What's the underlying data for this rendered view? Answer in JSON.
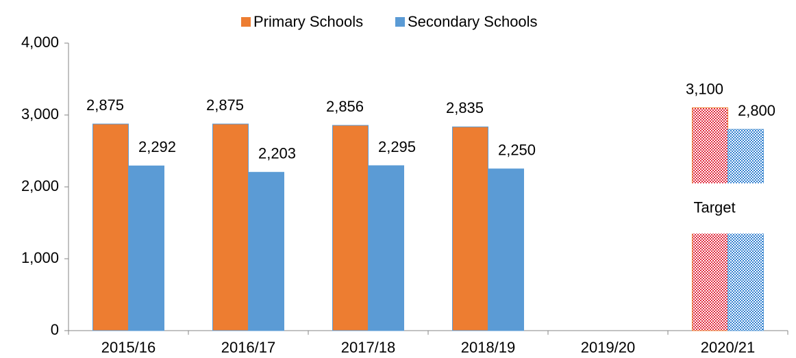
{
  "chart_data": {
    "type": "bar",
    "categories": [
      "2015/16",
      "2016/17",
      "2017/18",
      "2018/19",
      "2019/20",
      "2020/21"
    ],
    "series": [
      {
        "name": "Primary Schools",
        "color": "#ed7d31",
        "pattern_color": "#e0283c",
        "values": [
          2875,
          2875,
          2856,
          2835,
          null,
          3100
        ],
        "value_labels": [
          "2,875",
          "2,875",
          "2,856",
          "2,835",
          null,
          "3,100"
        ]
      },
      {
        "name": "Secondary Schools",
        "color": "#5b9bd5",
        "pattern_color": "#2f7fd0",
        "values": [
          2292,
          2203,
          2295,
          2250,
          null,
          2800
        ],
        "value_labels": [
          "2,292",
          "2,203",
          "2,295",
          "2,250",
          null,
          "2,800"
        ]
      }
    ],
    "annotation": "Target",
    "ylim": [
      0,
      4000
    ],
    "yticks": [
      {
        "value": 0,
        "label": "0"
      },
      {
        "value": 1000,
        "label": "1,000"
      },
      {
        "value": 2000,
        "label": "2,000"
      },
      {
        "value": 3000,
        "label": "3,000"
      },
      {
        "value": 4000,
        "label": "4,000"
      }
    ],
    "grid": false,
    "legend": "top"
  }
}
